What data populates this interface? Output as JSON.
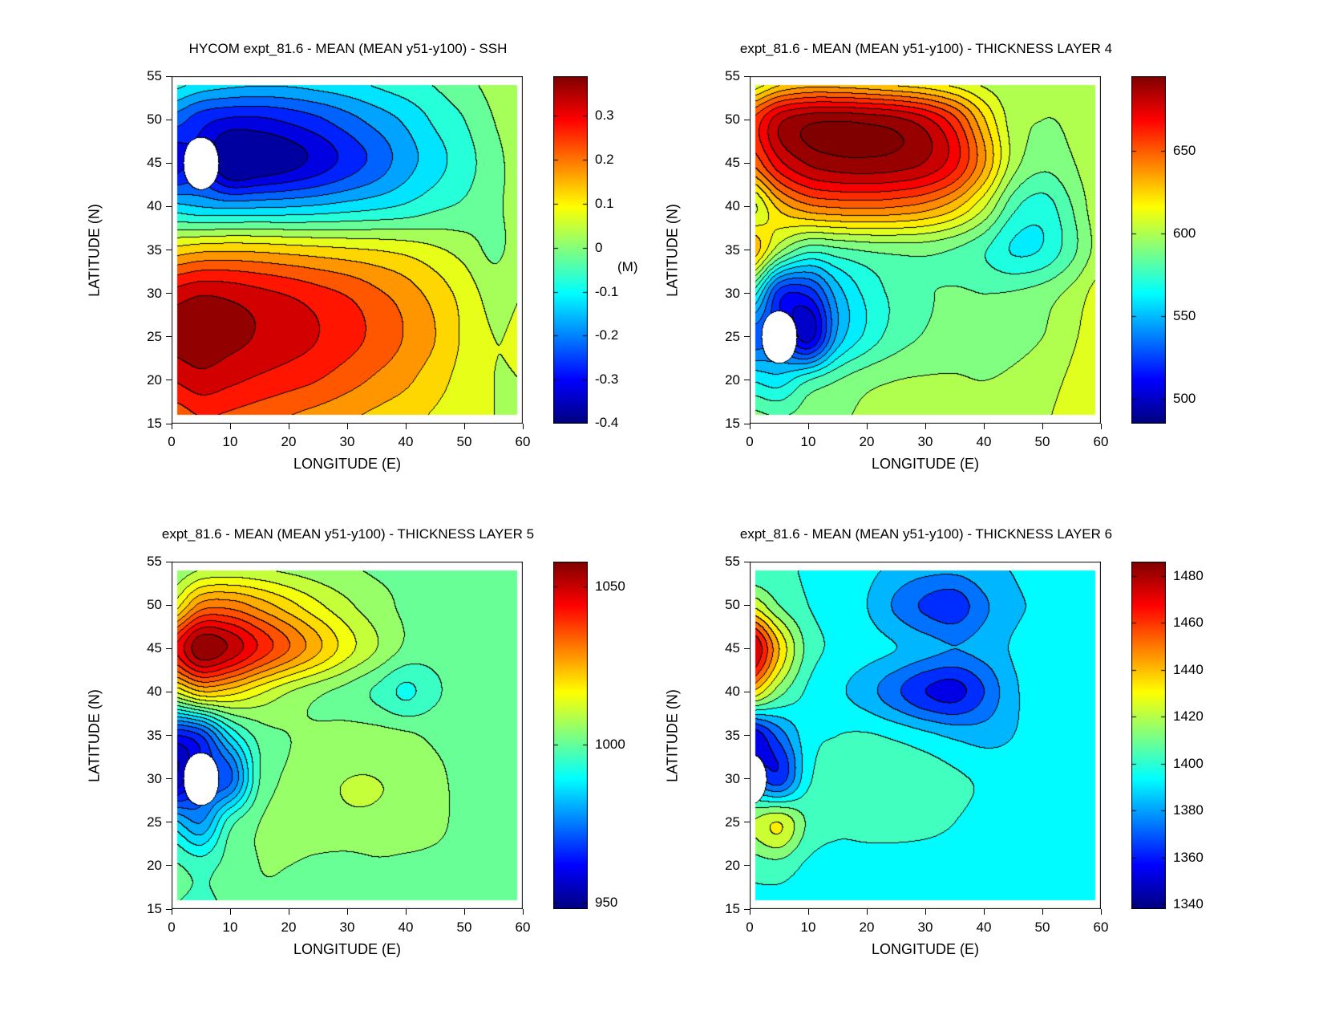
{
  "figure": {
    "background": "#ffffff",
    "colormap": "jet",
    "line_color": "#000000"
  },
  "chart_data": [
    {
      "id": "ssh",
      "type": "contour",
      "title": "HYCOM expt_81.6 - MEAN (MEAN y51-y100) - SSH",
      "xlabel": "LONGITUDE (E)",
      "ylabel": "LATITUDE (N)",
      "xlim": [
        0,
        60
      ],
      "ylim": [
        15,
        55
      ],
      "x_ticks": [
        0,
        10,
        20,
        30,
        40,
        50,
        60
      ],
      "y_ticks": [
        15,
        20,
        25,
        30,
        35,
        40,
        45,
        50,
        55
      ],
      "data_extent": [
        1,
        59,
        16,
        54
      ],
      "grid_x": [
        0,
        5,
        10,
        15,
        20,
        25,
        30,
        35,
        40,
        45,
        50,
        55,
        60
      ],
      "grid_y": [
        15,
        20,
        25,
        30,
        35,
        40,
        45,
        50,
        55
      ],
      "values": [
        [
          0.2,
          0.24,
          0.23,
          0.21,
          0.19,
          0.17,
          0.15,
          0.13,
          0.11,
          0.09,
          0.07,
          0.05,
          0.05
        ],
        [
          0.3,
          0.33,
          0.31,
          0.29,
          0.27,
          0.25,
          0.22,
          0.19,
          0.16,
          0.12,
          0.08,
          0.05,
          0.05
        ],
        [
          0.37,
          0.385,
          0.365,
          0.345,
          0.325,
          0.3,
          0.27,
          0.235,
          0.195,
          0.15,
          0.09,
          0.05,
          0.06
        ],
        [
          0.32,
          0.345,
          0.335,
          0.315,
          0.295,
          0.27,
          0.245,
          0.21,
          0.175,
          0.13,
          0.08,
          0.03,
          0.05
        ],
        [
          0.12,
          0.14,
          0.145,
          0.14,
          0.13,
          0.12,
          0.11,
          0.1,
          0.085,
          0.06,
          0.03,
          -0.01,
          0.03
        ],
        [
          -0.13,
          -0.15,
          -0.16,
          -0.155,
          -0.15,
          -0.14,
          -0.125,
          -0.11,
          -0.09,
          -0.06,
          -0.04,
          -0.01,
          0.02
        ],
        [
          -0.33,
          null,
          -0.42,
          -0.4,
          -0.37,
          -0.33,
          -0.28,
          -0.23,
          -0.17,
          -0.12,
          -0.07,
          -0.02,
          0.03
        ],
        [
          -0.22,
          -0.28,
          -0.31,
          -0.31,
          -0.29,
          -0.26,
          -0.22,
          -0.18,
          -0.14,
          -0.09,
          -0.05,
          0.0,
          0.04
        ],
        [
          -0.06,
          -0.09,
          -0.11,
          -0.12,
          -0.12,
          -0.11,
          -0.1,
          -0.08,
          -0.06,
          -0.04,
          -0.01,
          0.02,
          0.05
        ]
      ],
      "cmin": -0.4,
      "cmax": 0.39,
      "contour_interval": 0.05,
      "colorbar_ticks": [
        0.3,
        0.2,
        0.1,
        0,
        -0.1,
        -0.2,
        -0.3,
        -0.4
      ],
      "colorbar_label": "(M)"
    },
    {
      "id": "thickness-layer-4",
      "type": "contour",
      "title": "expt_81.6 - MEAN (MEAN y51-y100) - THICKNESS LAYER 4",
      "xlabel": "LONGITUDE (E)",
      "ylabel": "LATITUDE (N)",
      "xlim": [
        0,
        60
      ],
      "ylim": [
        15,
        55
      ],
      "x_ticks": [
        0,
        10,
        20,
        30,
        40,
        50,
        60
      ],
      "y_ticks": [
        15,
        20,
        25,
        30,
        35,
        40,
        45,
        50,
        55
      ],
      "data_extent": [
        1,
        59,
        16,
        54
      ],
      "grid_x": [
        0,
        5,
        10,
        15,
        20,
        25,
        30,
        35,
        40,
        45,
        50,
        55,
        60
      ],
      "grid_y": [
        15,
        20,
        25,
        30,
        35,
        40,
        45,
        50,
        55
      ],
      "values": [
        [
          592,
          588,
          590,
          594,
          597,
          599,
          600,
          600,
          600,
          601,
          604,
          609,
          616
        ],
        [
          565,
          560,
          575,
          585,
          592,
          595,
          596,
          596,
          595,
          597,
          601,
          607,
          615
        ],
        [
          530,
          null,
          500,
          548,
          568,
          580,
          586,
          589,
          589,
          591,
          595,
          603,
          613
        ],
        [
          575,
          520,
          518,
          550,
          568,
          578,
          584,
          586,
          585,
          586,
          590,
          598,
          610
        ],
        [
          635,
          598,
          578,
          582,
          586,
          588,
          588,
          584,
          576,
          564,
          566,
          582,
          600
        ],
        [
          600,
          628,
          642,
          646,
          647,
          645,
          640,
          628,
          606,
          578,
          570,
          585,
          603
        ],
        [
          645,
          672,
          686,
          691,
          692,
          690,
          684,
          668,
          636,
          600,
          588,
          594,
          605
        ],
        [
          655,
          682,
          692,
          694,
          692,
          688,
          678,
          658,
          626,
          600,
          595,
          597,
          606
        ],
        [
          598,
          614,
          621,
          620,
          617,
          613,
          610,
          605,
          600,
          597,
          595,
          596,
          602
        ]
      ],
      "cmin": 485,
      "cmax": 695,
      "contour_interval": 10,
      "colorbar_ticks": [
        650,
        600,
        550,
        500
      ],
      "colorbar_label": ""
    },
    {
      "id": "thickness-layer-5",
      "type": "contour",
      "title": "expt_81.6 - MEAN (MEAN y51-y100) - THICKNESS LAYER 5",
      "xlabel": "LONGITUDE (E)",
      "ylabel": "LATITUDE (N)",
      "xlim": [
        0,
        60
      ],
      "ylim": [
        15,
        55
      ],
      "x_ticks": [
        0,
        10,
        20,
        30,
        40,
        50,
        60
      ],
      "y_ticks": [
        15,
        20,
        25,
        30,
        35,
        40,
        45,
        50,
        55
      ],
      "data_extent": [
        1,
        59,
        16,
        54
      ],
      "grid_x": [
        0,
        5,
        10,
        15,
        20,
        25,
        30,
        35,
        40,
        45,
        50,
        55,
        60
      ],
      "grid_y": [
        15,
        20,
        25,
        30,
        35,
        40,
        45,
        50,
        55
      ],
      "values": [
        [
          998,
          997,
          999,
          1002,
          1002,
          1001,
          998,
          999,
          1002,
          1002,
          1002,
          1002,
          1002
        ],
        [
          999,
          996,
          1000,
          1003,
          1003,
          1002,
          1001,
          1002,
          1002,
          1002,
          1002,
          1002,
          1002
        ],
        [
          985,
          978,
          996,
          1003,
          1005,
          1006,
          1007,
          1007,
          1006,
          1004,
          1002,
          1002,
          1002
        ],
        [
          952,
          null,
          972,
          998,
          1004,
          1007,
          1008,
          1008,
          1007,
          1004,
          1002,
          1002,
          1002
        ],
        [
          962,
          968,
          988,
          1000,
          1003,
          1004,
          1005,
          1005,
          1004,
          1002,
          1002,
          1002,
          1002
        ],
        [
          1012,
          1022,
          1020,
          1014,
          1008,
          1004,
          1001,
          997,
          992,
          997,
          1001,
          1002,
          1002
        ],
        [
          1042,
          1057,
          1052,
          1042,
          1033,
          1024,
          1015,
          1008,
          1002,
          1000,
          1002,
          1002,
          1002
        ],
        [
          1014,
          1030,
          1031,
          1026,
          1020,
          1014,
          1009,
          1005,
          1002,
          1000,
          1002,
          1002,
          1002
        ],
        [
          1002,
          1005,
          1006,
          1006,
          1005,
          1004,
          1003,
          1002,
          1002,
          1002,
          1002,
          1002,
          1002
        ]
      ],
      "cmin": 948,
      "cmax": 1058,
      "contour_interval": 5,
      "colorbar_ticks": [
        1050,
        1000,
        950
      ],
      "colorbar_label": ""
    },
    {
      "id": "thickness-layer-6",
      "type": "contour",
      "title": "expt_81.6 - MEAN (MEAN y51-y100) - THICKNESS LAYER 6",
      "xlabel": "LONGITUDE (E)",
      "ylabel": "LATITUDE (N)",
      "xlim": [
        0,
        60
      ],
      "ylim": [
        15,
        55
      ],
      "x_ticks": [
        0,
        10,
        20,
        30,
        40,
        50,
        60
      ],
      "y_ticks": [
        15,
        20,
        25,
        30,
        35,
        40,
        45,
        50,
        55
      ],
      "data_extent": [
        1,
        59,
        16,
        54
      ],
      "grid_x": [
        0,
        5,
        10,
        15,
        20,
        25,
        30,
        35,
        40,
        45,
        50,
        55,
        60
      ],
      "grid_y": [
        15,
        20,
        25,
        30,
        35,
        40,
        45,
        50,
        55
      ],
      "values": [
        [
          1394,
          1393,
          1391,
          1391,
          1391,
          1391,
          1391,
          1391,
          1391,
          1391,
          1391,
          1391,
          1391
        ],
        [
          1402,
          1404,
          1396,
          1393,
          1392,
          1391,
          1391,
          1391,
          1391,
          1391,
          1391,
          1391,
          1391
        ],
        [
          1418,
          1428,
          1406,
          1401,
          1403,
          1404,
          1402,
          1398,
          1394,
          1391,
          1391,
          1391,
          1391
        ],
        [
          null,
          1362,
          1396,
          1402,
          1405,
          1406,
          1404,
          1400,
          1396,
          1392,
          1391,
          1391,
          1394
        ],
        [
          1348,
          1372,
          1394,
          1398,
          1399,
          1396,
          1391,
          1386,
          1384,
          1388,
          1391,
          1391,
          1391
        ],
        [
          1438,
          1412,
          1396,
          1390,
          1382,
          1370,
          1358,
          1354,
          1368,
          1386,
          1392,
          1391,
          1391
        ],
        [
          1484,
          1438,
          1404,
          1396,
          1392,
          1388,
          1382,
          1378,
          1382,
          1389,
          1392,
          1391,
          1391
        ],
        [
          1428,
          1408,
          1398,
          1394,
          1388,
          1376,
          1366,
          1362,
          1376,
          1386,
          1390,
          1396,
          1390
        ],
        [
          1394,
          1398,
          1397,
          1394,
          1391,
          1387,
          1384,
          1384,
          1387,
          1389,
          1394,
          1392,
          1390
        ]
      ],
      "cmin": 1338,
      "cmax": 1486,
      "contour_interval": 10,
      "colorbar_ticks": [
        1480,
        1460,
        1440,
        1420,
        1400,
        1380,
        1360,
        1340
      ],
      "colorbar_label": ""
    }
  ]
}
